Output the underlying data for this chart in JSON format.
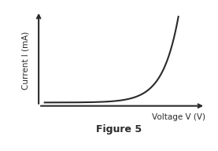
{
  "title": "Figure 5",
  "xlabel": "Voltage V (V)",
  "ylabel": "Current I (mA)",
  "background_color": "#ffffff",
  "curve_color": "#2a2a2a",
  "axis_color": "#2a2a2a",
  "curve_scale": 0.0002,
  "curve_exp_factor": 9.5,
  "title_fontsize": 9,
  "label_fontsize": 7.5,
  "line_width": 1.5,
  "xmax": 1.0,
  "ymax": 1.0
}
